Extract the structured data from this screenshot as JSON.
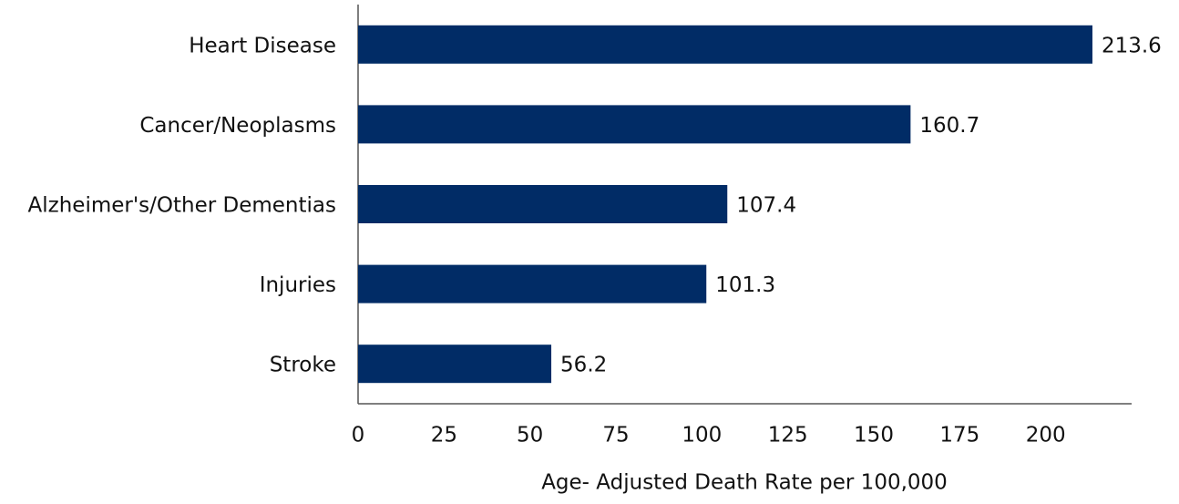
{
  "chart_data": {
    "type": "bar",
    "orientation": "horizontal",
    "categories": [
      "Heart Disease",
      "Cancer/Neoplasms",
      "Alzheimer's/Other Dementias",
      "Injuries",
      "Stroke"
    ],
    "values": [
      213.6,
      160.7,
      107.4,
      101.3,
      56.2
    ],
    "color": "#012c66",
    "xlabel": "Age- Adjusted Death Rate per 100,000",
    "xlim": [
      0,
      225
    ],
    "xticks": [
      0,
      25,
      50,
      75,
      100,
      125,
      150,
      175,
      200
    ],
    "grid": false
  }
}
